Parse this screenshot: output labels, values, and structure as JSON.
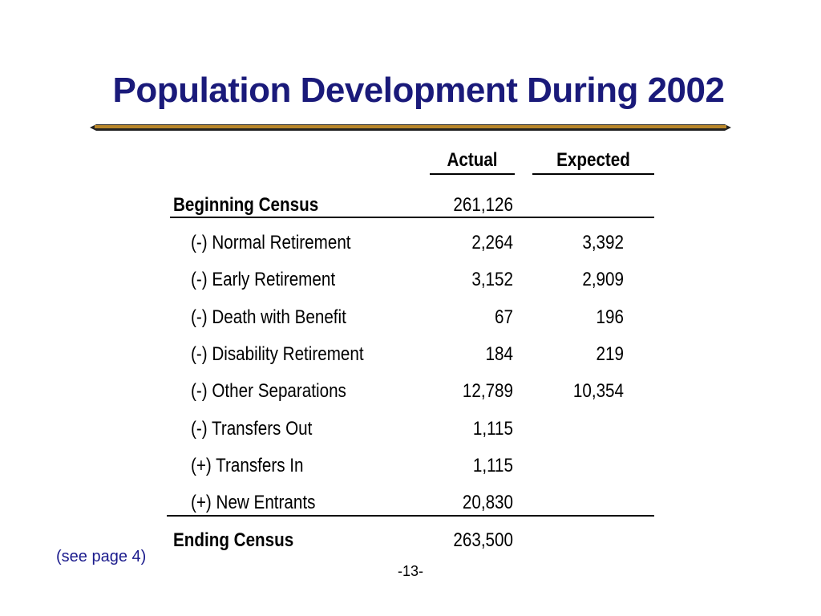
{
  "title": "Population Development During 2002",
  "colors": {
    "title": "#1a1a7a",
    "bar_gold": "#b8862a",
    "bar_dark": "#222222",
    "footnote": "#1a1a8c"
  },
  "table": {
    "headers": {
      "actual": "Actual",
      "expected": "Expected"
    },
    "beginning": {
      "label": "Beginning Census",
      "actual": "261,126",
      "expected": ""
    },
    "rows": [
      {
        "label": "(-) Normal Retirement",
        "actual": "2,264",
        "expected": "3,392"
      },
      {
        "label": "(-) Early Retirement",
        "actual": "3,152",
        "expected": "2,909"
      },
      {
        "label": "(-) Death with Benefit",
        "actual": "67",
        "expected": "196"
      },
      {
        "label": "(-) Disability Retirement",
        "actual": "184",
        "expected": "219"
      },
      {
        "label": "(-) Other Separations",
        "actual": "12,789",
        "expected": "10,354"
      },
      {
        "label": "(-) Transfers Out",
        "actual": "1,115",
        "expected": ""
      },
      {
        "label": "(+) Transfers In",
        "actual": "1,115",
        "expected": ""
      },
      {
        "label": "(+) New Entrants",
        "actual": "20,830",
        "expected": ""
      }
    ],
    "ending": {
      "label": "Ending Census",
      "actual": "263,500",
      "expected": ""
    }
  },
  "footnote": "(see page 4)",
  "page_number": "-13-"
}
